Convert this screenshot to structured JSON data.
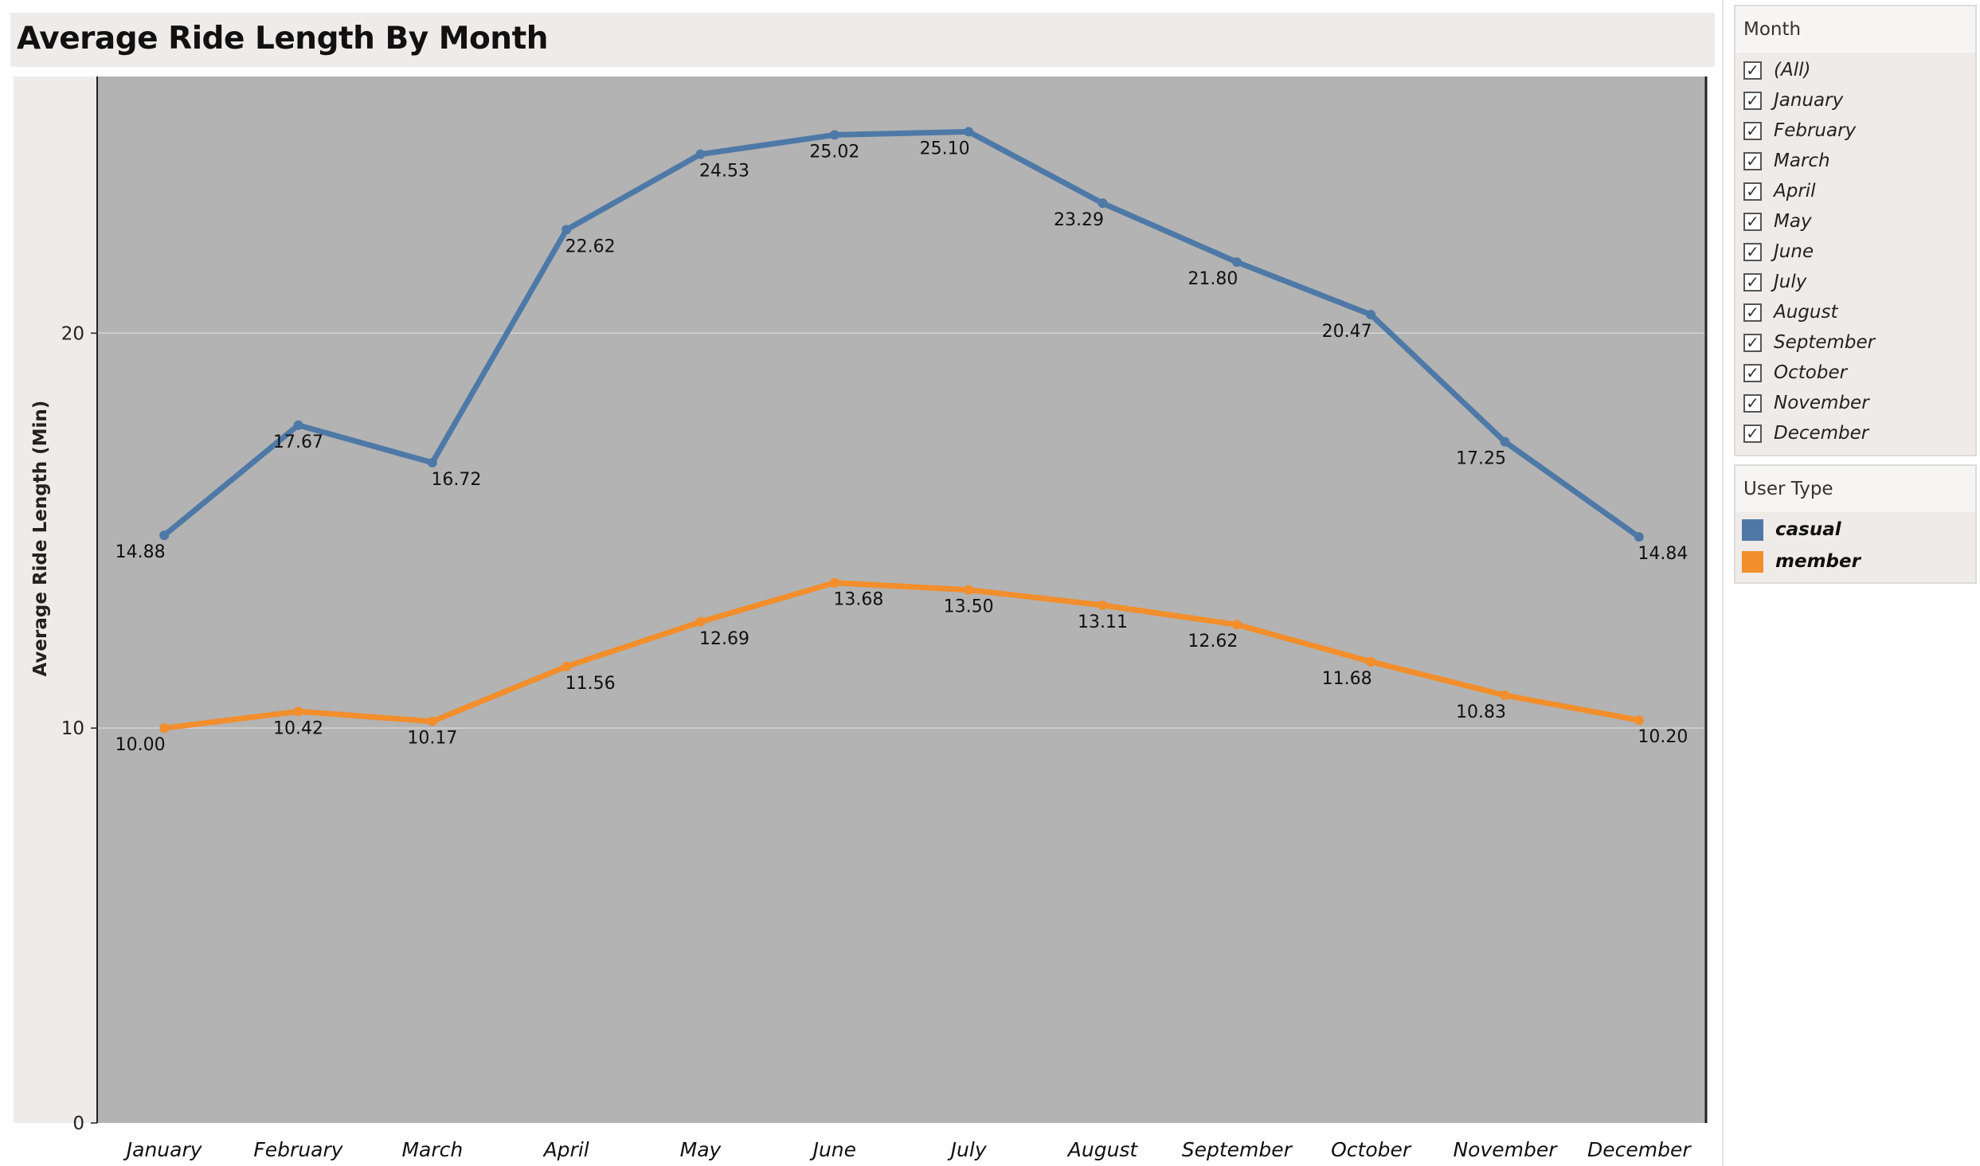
{
  "header": {
    "title": "Average Ride Length By Month"
  },
  "filters": {
    "month": {
      "title": "Month",
      "items": [
        {
          "label": "(All)",
          "checked": true
        },
        {
          "label": "January",
          "checked": true
        },
        {
          "label": "February",
          "checked": true
        },
        {
          "label": "March",
          "checked": true
        },
        {
          "label": "April",
          "checked": true
        },
        {
          "label": "May",
          "checked": true
        },
        {
          "label": "June",
          "checked": true
        },
        {
          "label": "July",
          "checked": true
        },
        {
          "label": "August",
          "checked": true
        },
        {
          "label": "September",
          "checked": true
        },
        {
          "label": "October",
          "checked": true
        },
        {
          "label": "November",
          "checked": true
        },
        {
          "label": "December",
          "checked": true
        }
      ]
    }
  },
  "legend": {
    "title": "User Type",
    "items": [
      {
        "label": "casual",
        "color": "#4e79a7"
      },
      {
        "label": "member",
        "color": "#f28e2b"
      }
    ]
  },
  "chart_data": {
    "type": "line",
    "title": "Average Ride Length By Month",
    "xlabel": "",
    "ylabel": "Average Ride Length (Min)",
    "ylim": [
      0,
      26.5
    ],
    "yticks": [
      0,
      10,
      20
    ],
    "grid": true,
    "background": "#b3b3b3",
    "legend_position": "right",
    "categories": [
      "January",
      "February",
      "March",
      "April",
      "May",
      "June",
      "July",
      "August",
      "September",
      "October",
      "November",
      "December"
    ],
    "series": [
      {
        "name": "casual",
        "color": "#4e79a7",
        "values": [
          14.88,
          17.67,
          16.72,
          22.62,
          24.53,
          25.02,
          25.1,
          23.29,
          21.8,
          20.47,
          17.25,
          14.84
        ],
        "labels": [
          "14.88",
          "17.67",
          "16.72",
          "22.62",
          "24.53",
          "25.02",
          "25.10",
          "23.29",
          "21.80",
          "20.47",
          "17.25",
          "14.84"
        ]
      },
      {
        "name": "member",
        "color": "#f28e2b",
        "values": [
          10.0,
          10.42,
          10.17,
          11.56,
          12.69,
          13.68,
          13.5,
          13.11,
          12.62,
          11.68,
          10.83,
          10.2
        ],
        "labels": [
          "10.00",
          "10.42",
          "10.17",
          "11.56",
          "12.69",
          "13.68",
          "13.50",
          "13.11",
          "12.62",
          "11.68",
          "10.83",
          "10.20"
        ]
      }
    ]
  }
}
